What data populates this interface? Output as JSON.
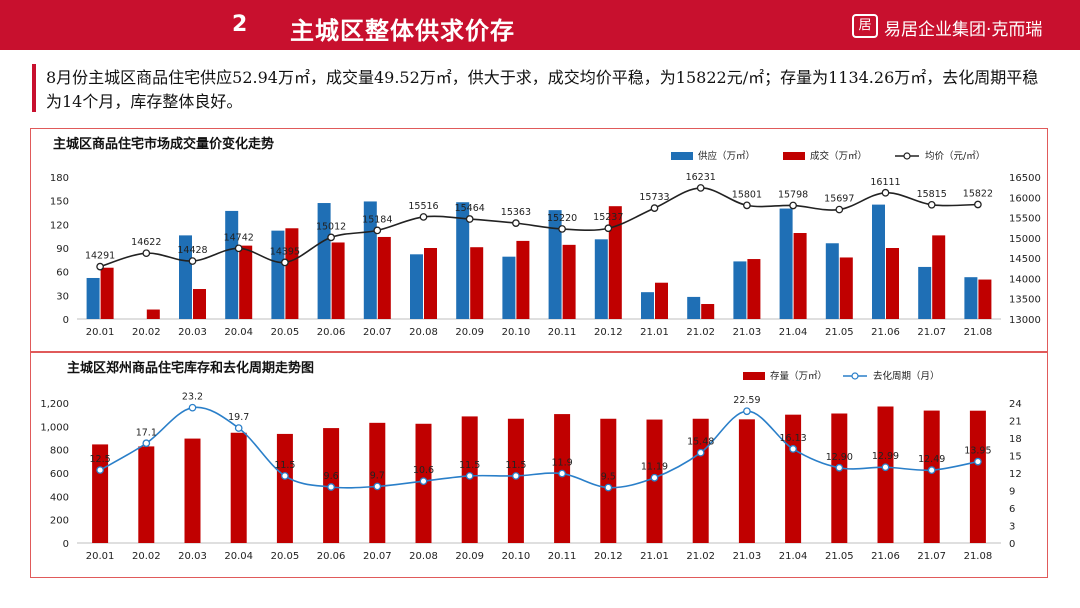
{
  "banner": {
    "section_number": "2",
    "title": "主城区整体供求价存",
    "brand": "易居企业集团·克而瑞"
  },
  "summary": "8月份主城区商品住宅供应52.94万㎡，成交量49.52万㎡，供大于求，成交均价平稳，为15822元/㎡；存量为1134.26万㎡，去化周期平稳为14个月，库存整体良好。",
  "colors": {
    "supply": "#1f6fb5",
    "deal": "#c00000",
    "inventory": "#c00000",
    "price_line": "#222222",
    "period_line": "#2a7fc9",
    "banner": "#c8102e"
  },
  "chart_data": [
    {
      "type": "bar",
      "title": "主城区商品住宅市场成交量价变化走势",
      "categories": [
        "20.01",
        "20.02",
        "20.03",
        "20.04",
        "20.05",
        "20.06",
        "20.07",
        "20.08",
        "20.09",
        "20.10",
        "20.11",
        "20.12",
        "21.01",
        "21.02",
        "21.03",
        "21.04",
        "21.05",
        "21.06",
        "21.07",
        "21.08"
      ],
      "series": [
        {
          "name": "供应（万㎡）",
          "kind": "bar",
          "axis": "left",
          "values": [
            52,
            0,
            106,
            137,
            112,
            147,
            149,
            82,
            148,
            79,
            138,
            101,
            34,
            28,
            73,
            140,
            96,
            145,
            66,
            53
          ]
        },
        {
          "name": "成交（万㎡）",
          "kind": "bar",
          "axis": "left",
          "values": [
            65,
            12,
            38,
            93,
            115,
            97,
            104,
            90,
            91,
            99,
            94,
            143,
            46,
            19,
            76,
            109,
            78,
            90,
            106,
            50
          ]
        },
        {
          "name": "均价（元/㎡）",
          "kind": "line",
          "axis": "right",
          "values": [
            14291,
            14622,
            14428,
            14742,
            14395,
            15012,
            15184,
            15516,
            15464,
            15363,
            15220,
            15237,
            15733,
            16231,
            15801,
            15798,
            15697,
            16111,
            15815,
            15822
          ],
          "labels": [
            "14291",
            "14622",
            "14428",
            "14742",
            "14395",
            "15012",
            "15184",
            "15516",
            "15464",
            "15363",
            "15220",
            "15237",
            "15733",
            "16231",
            "15801",
            "15798",
            "15697",
            "16111",
            "15815",
            "15822"
          ]
        }
      ],
      "left_axis": {
        "min": 0,
        "max": 180,
        "step": 30,
        "ticks": [
          "0",
          "30",
          "60",
          "90",
          "120",
          "150",
          "180"
        ]
      },
      "right_axis": {
        "min": 13000,
        "max": 16500,
        "step": 500,
        "ticks": [
          "13000",
          "13500",
          "14000",
          "14500",
          "15000",
          "15500",
          "16000",
          "16500"
        ]
      }
    },
    {
      "type": "bar",
      "title": "主城区郑州商品住宅库存和去化周期走势图",
      "categories": [
        "20.01",
        "20.02",
        "20.03",
        "20.04",
        "20.05",
        "20.06",
        "20.07",
        "20.08",
        "20.09",
        "20.10",
        "20.11",
        "20.12",
        "21.01",
        "21.02",
        "21.03",
        "21.04",
        "21.05",
        "21.06",
        "21.07",
        "21.08"
      ],
      "series": [
        {
          "name": "存量（万㎡）",
          "kind": "bar",
          "axis": "left",
          "values": [
            845,
            828,
            895,
            945,
            935,
            985,
            1030,
            1022,
            1085,
            1065,
            1105,
            1065,
            1058,
            1065,
            1060,
            1100,
            1110,
            1170,
            1135,
            1134
          ]
        },
        {
          "name": "去化周期（月）",
          "kind": "line",
          "axis": "right",
          "values": [
            12.5,
            17.1,
            23.2,
            19.7,
            11.5,
            9.6,
            9.7,
            10.6,
            11.5,
            11.5,
            11.9,
            9.5,
            11.19,
            15.48,
            22.59,
            16.13,
            12.9,
            12.99,
            12.49,
            13.95
          ],
          "labels": [
            "12.5",
            "17.1",
            "23.2",
            "19.7",
            "11.5",
            "9.6",
            "9.7",
            "10.6",
            "11.5",
            "11.5",
            "11.9",
            "9.5",
            "11.19",
            "15.48",
            "22.59",
            "16.13",
            "12.90",
            "12.99",
            "12.49",
            "13.95"
          ]
        }
      ],
      "left_axis": {
        "min": 0,
        "max": 1200,
        "step": 200,
        "ticks": [
          "0",
          "200",
          "400",
          "600",
          "800",
          "1,000",
          "1,200"
        ]
      },
      "right_axis": {
        "min": 0,
        "max": 24,
        "step": 3,
        "ticks": [
          "0",
          "3",
          "6",
          "9",
          "12",
          "15",
          "18",
          "21",
          "24"
        ]
      }
    }
  ]
}
